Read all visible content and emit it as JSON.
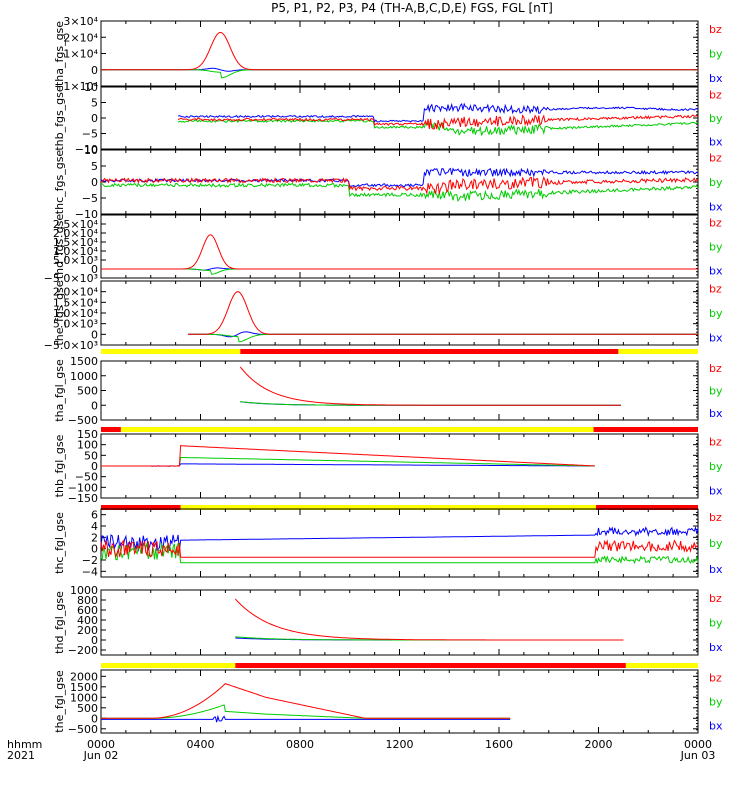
{
  "title": "P5, P1, P2, P3, P4 (TH-A,B,C,D,E) FGS, FGL [nT]",
  "colors": {
    "bx": "#0000ff",
    "by": "#00cc00",
    "bz": "#ff0000",
    "bar_yellow": "#ffff00",
    "bar_red": "#ff0000",
    "axes": "#000000"
  },
  "chart_data": {
    "type": "line",
    "x_range": [
      "2021-06-02 00:00",
      "2021-06-03 00:00"
    ],
    "x_ticks": [
      "0000",
      "0400",
      "0800",
      "1200",
      "1600",
      "2000",
      "0000"
    ],
    "x_tick_dates": [
      "Jun 02",
      "Jun 03"
    ],
    "x_prefix": [
      "hhmm",
      "2021"
    ],
    "legend": [
      "bz",
      "by",
      "bx"
    ],
    "panels": [
      {
        "ylabel": "tha_fgs_gse",
        "ylim": [
          -10000,
          30000
        ],
        "yticks": [
          "3×10⁴",
          "2×10⁴",
          "1×10⁴",
          "0",
          "−1×10⁴"
        ],
        "ytick_vals": [
          30000,
          20000,
          10000,
          0,
          -10000
        ],
        "profile": "peak",
        "peak": {
          "t": 4.8,
          "w": 0.55,
          "bz": 23000,
          "by": -5000,
          "bx": -1500
        }
      },
      {
        "ylabel": "thb_fgs_gse",
        "ylim": [
          -10,
          10
        ],
        "yticks": [
          "10",
          "5",
          "0",
          "−5",
          "−10"
        ],
        "ytick_vals": [
          10,
          5,
          0,
          -5,
          -10
        ],
        "profile": "noisy_b"
      },
      {
        "ylabel": "thc_fgs_gse",
        "ylim": [
          -10,
          10
        ],
        "yticks": [
          "10",
          "5",
          "0",
          "−5",
          "−10"
        ],
        "ytick_vals": [
          10,
          5,
          0,
          -5,
          -10
        ],
        "profile": "noisy_c"
      },
      {
        "ylabel": "thd_fgs_gse",
        "ylim": [
          -5000,
          30000
        ],
        "yticks": [
          "2.5×10⁴",
          "2.0×10⁴",
          "1.5×10⁴",
          "1.0×10⁴",
          "5.0×10³",
          "0",
          "−5.0×10³"
        ],
        "ytick_vals": [
          25000,
          20000,
          15000,
          10000,
          5000,
          0,
          -5000
        ],
        "profile": "peak",
        "peak": {
          "t": 4.4,
          "w": 0.45,
          "bz": 19000,
          "by": -3000,
          "bx": 1200
        }
      },
      {
        "ylabel": "the_fgs_gse",
        "ylim": [
          -5000,
          25000
        ],
        "yticks": [
          "2.0×10⁴",
          "1.5×10⁴",
          "1.0×10⁴",
          "5.0×10³",
          "0",
          "−5.0×10³"
        ],
        "ytick_vals": [
          20000,
          15000,
          10000,
          5000,
          0,
          -5000
        ],
        "profile": "peak",
        "peak": {
          "t": 5.5,
          "w": 0.55,
          "bz": 20000,
          "by": -3500,
          "bx": 2000
        },
        "bar": [
          [
            "y",
            0,
            5.6
          ],
          [
            "r",
            5.6,
            20.8
          ],
          [
            "y",
            20.8,
            24
          ]
        ]
      },
      {
        "ylabel": "tha_fgl_gse",
        "ylim": [
          -500,
          1500
        ],
        "yticks": [
          "1500",
          "1000",
          "500",
          "0",
          "−500"
        ],
        "ytick_vals": [
          1500,
          1000,
          500,
          0,
          -500
        ],
        "profile": "decay",
        "decay": {
          "t0": 5.6,
          "t1": 20.9,
          "bz0": 1300,
          "by0": 250,
          "bx0": 300,
          "tau": 1.2
        },
        "bar": [
          [
            "r",
            0,
            0.8
          ],
          [
            "y",
            0.8,
            19.8
          ],
          [
            "r",
            19.8,
            24
          ]
        ]
      },
      {
        "ylabel": "thb_fgl_gse",
        "ylim": [
          -150,
          150
        ],
        "yticks": [
          "150",
          "100",
          "50",
          "0",
          "−50",
          "−100",
          "−150"
        ],
        "ytick_vals": [
          150,
          100,
          50,
          0,
          -50,
          -100,
          -150
        ],
        "profile": "ramp_b",
        "bar": [
          [
            "r",
            0,
            3.2
          ],
          [
            "y",
            3.2,
            19.9
          ],
          [
            "r",
            19.9,
            24
          ]
        ]
      },
      {
        "ylabel": "thc_fgl_gse",
        "ylim": [
          -5,
          7
        ],
        "yticks": [
          "6",
          "4",
          "2",
          "0",
          "−2",
          "−4"
        ],
        "ytick_vals": [
          6,
          4,
          2,
          0,
          -2,
          -4
        ],
        "profile": "noisy_cl"
      },
      {
        "ylabel": "thd_fgl_gse",
        "ylim": [
          -300,
          1000
        ],
        "yticks": [
          "1000",
          "800",
          "600",
          "400",
          "200",
          "0",
          "−200"
        ],
        "ytick_vals": [
          1000,
          800,
          600,
          400,
          200,
          0,
          -200
        ],
        "profile": "decay",
        "decay": {
          "t0": 5.4,
          "t1": 21.0,
          "bz0": 820,
          "by0": 130,
          "bx0": 100,
          "tau": 1.5
        },
        "bar": [
          [
            "y",
            0,
            5.4
          ],
          [
            "r",
            5.4,
            21.1
          ],
          [
            "y",
            21.1,
            24
          ]
        ]
      },
      {
        "ylabel": "the_fgl_gse",
        "ylim": [
          -700,
          2300
        ],
        "yticks": [
          "2000",
          "1500",
          "1000",
          "500",
          "0",
          "−500"
        ],
        "ytick_vals": [
          2000,
          1500,
          1000,
          500,
          0,
          -500
        ],
        "profile": "tri",
        "bar": [
          [
            "r",
            0,
            4.9
          ],
          [
            "y",
            4.9,
            6.6
          ],
          [
            "r",
            6.6,
            16.5
          ],
          [
            "y",
            16.5,
            24
          ]
        ]
      }
    ]
  }
}
